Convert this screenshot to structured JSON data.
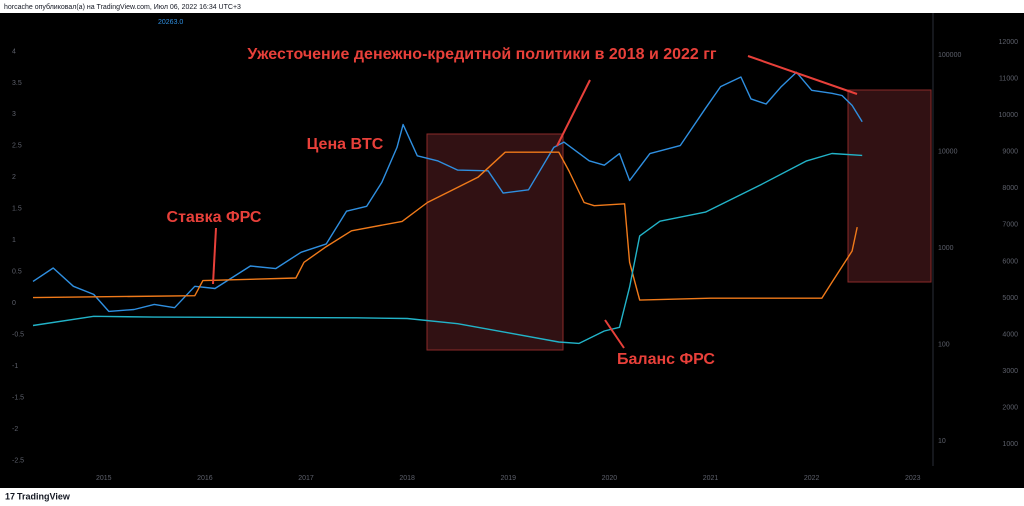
{
  "header": {
    "text": "horcache опубликовал(а) на TradingView.com, Июл 06, 2022 16:34 UTC+3",
    "price_label": "20263.0"
  },
  "footer": {
    "brand": "TradingView"
  },
  "chart_data": {
    "type": "line",
    "annotations": [
      "Ужесточение денежно-кредитной политики в 2018 и 2022 гг",
      "Цена BTC",
      "Ставка ФРС",
      "Баланс ФРС"
    ],
    "xlim": [
      2014.3,
      2023.2
    ],
    "xticks": [
      2015,
      2016,
      2017,
      2018,
      2019,
      2020,
      2021,
      2022,
      2023
    ],
    "ylim": [
      -2.65,
      4.5
    ],
    "yticks": [
      -2.5,
      -2,
      -1.5,
      -1,
      -0.5,
      0,
      0.5,
      1,
      1.5,
      2,
      2.5,
      3,
      3.5,
      4
    ],
    "y2lim": [
      5,
      230000
    ],
    "y2log": true,
    "y2ticks": [
      10,
      100,
      1000,
      10000,
      100000
    ],
    "y3lim": [
      300,
      12600
    ],
    "y3ticks": [
      1000,
      2000,
      3000,
      4000,
      5000,
      6000,
      7000,
      8000,
      9000,
      10000,
      11000,
      12000
    ],
    "series": [
      {
        "color": "#2f8fe0",
        "axis": "y2",
        "x": [
          2014.3,
          2014.5,
          2014.7,
          2014.9,
          2015.05,
          2015.3,
          2015.5,
          2015.7,
          2015.9,
          2016.1,
          2016.45,
          2016.7,
          2016.95,
          2017.2,
          2017.4,
          2017.6,
          2017.75,
          2017.9,
          2017.96,
          2018.1,
          2018.3,
          2018.5,
          2018.8,
          2018.95,
          2019.2,
          2019.45,
          2019.55,
          2019.8,
          2019.95,
          2020.1,
          2020.2,
          2020.4,
          2020.7,
          2020.95,
          2021.1,
          2021.3,
          2021.4,
          2021.55,
          2021.7,
          2021.85,
          2022.0,
          2022.2,
          2022.3,
          2022.4,
          2022.5
        ],
        "values": [
          450,
          620,
          400,
          330,
          220,
          230,
          260,
          240,
          400,
          380,
          650,
          610,
          900,
          1100,
          2400,
          2700,
          4800,
          11000,
          19000,
          9000,
          8000,
          6400,
          6300,
          3700,
          4000,
          11000,
          12500,
          8000,
          7200,
          9500,
          5000,
          9500,
          11500,
          28000,
          47000,
          59000,
          35000,
          31000,
          47000,
          66000,
          43000,
          40000,
          38000,
          30000,
          20263
        ]
      },
      {
        "color": "#f07a1a",
        "axis": "y",
        "x": [
          2014.3,
          2015.9,
          2015.98,
          2016.9,
          2016.98,
          2017.2,
          2017.45,
          2017.95,
          2018.2,
          2018.45,
          2018.7,
          2018.97,
          2019.5,
          2019.6,
          2019.75,
          2019.85,
          2020.15,
          2020.2,
          2020.3,
          2021.0,
          2022.1,
          2022.2,
          2022.4,
          2022.45
        ],
        "values": [
          0.09,
          0.12,
          0.36,
          0.4,
          0.65,
          0.9,
          1.15,
          1.3,
          1.6,
          1.8,
          2.0,
          2.4,
          2.4,
          2.1,
          1.6,
          1.55,
          1.58,
          0.65,
          0.05,
          0.08,
          0.08,
          0.33,
          0.83,
          1.21
        ]
      },
      {
        "color": "#22b3c8",
        "axis": "y3",
        "x": [
          2014.3,
          2014.9,
          2015.5,
          2017.5,
          2018.0,
          2018.5,
          2019.0,
          2019.5,
          2019.7,
          2019.95,
          2020.1,
          2020.2,
          2020.3,
          2020.5,
          2020.95,
          2021.5,
          2021.95,
          2022.2,
          2022.5
        ],
        "values": [
          4250,
          4500,
          4480,
          4460,
          4440,
          4300,
          4050,
          3800,
          3760,
          4100,
          4200,
          5300,
          6700,
          7100,
          7350,
          8100,
          8750,
          8950,
          8900
        ]
      }
    ]
  }
}
